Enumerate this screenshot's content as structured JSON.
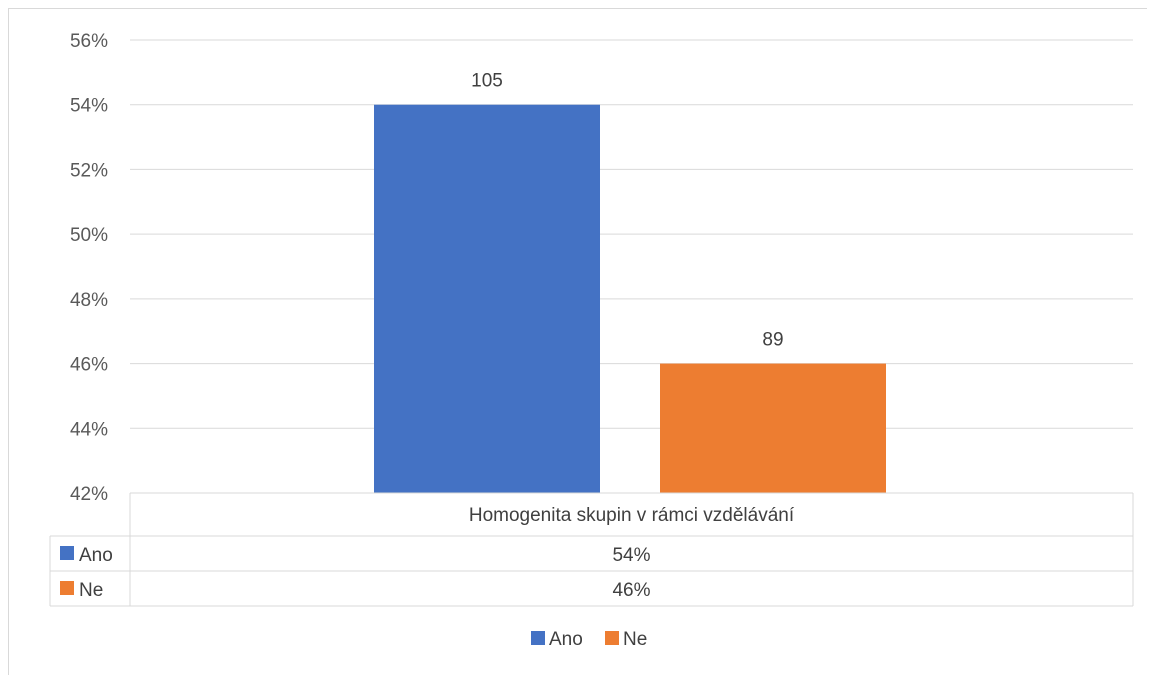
{
  "chart_data": {
    "type": "bar",
    "categories": [
      "Homogenita skupin v rámci vzdělávání"
    ],
    "series": [
      {
        "name": "Ano",
        "values": [
          54
        ],
        "data_label": "105",
        "table_value": "54%",
        "color": "#4472C4"
      },
      {
        "name": "Ne",
        "values": [
          46
        ],
        "data_label": "89",
        "table_value": "46%",
        "color": "#ED7D31"
      }
    ],
    "ylim": [
      42,
      56
    ],
    "y_ticks": [
      "42%",
      "44%",
      "46%",
      "48%",
      "50%",
      "52%",
      "54%",
      "56%"
    ],
    "y_tick_values": [
      42,
      44,
      46,
      48,
      50,
      52,
      54,
      56
    ],
    "grid": true,
    "data_table": true,
    "legend_position": "bottom",
    "colors": {
      "gridline": "#d9d9d9",
      "tick_text": "#595959"
    }
  }
}
